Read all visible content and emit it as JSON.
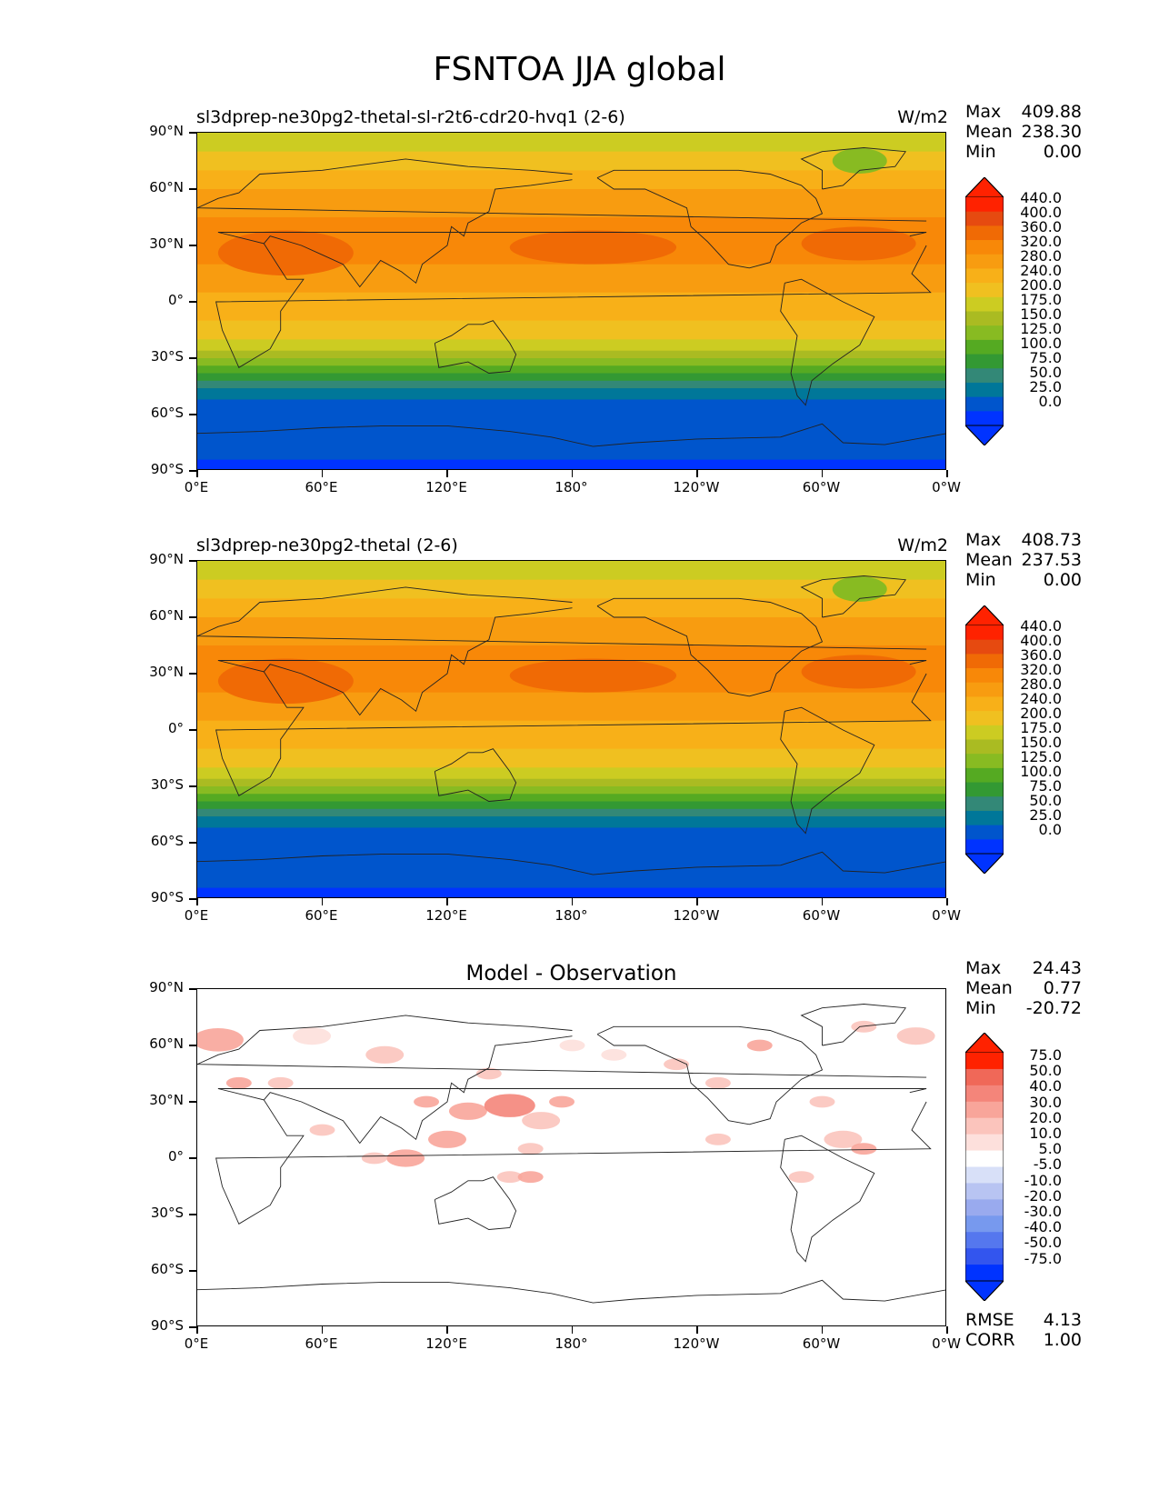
{
  "page_title": "FSNTOA JJA global",
  "panels": [
    {
      "title_left": "sl3dprep-ne30pg2-thetal-sl-r2t6-cdr20-hvq1 (2-6)",
      "title_right": "W/m2",
      "stats": {
        "max_label": "Max",
        "max": "409.88",
        "mean_label": "Mean",
        "mean": "238.30",
        "min_label": "Min",
        "min": "0.00"
      },
      "colorbar": [
        "440.0",
        "400.0",
        "360.0",
        "320.0",
        "280.0",
        "240.0",
        "200.0",
        "175.0",
        "150.0",
        "125.0",
        "100.0",
        "75.0",
        "50.0",
        "25.0",
        "0.0"
      ]
    },
    {
      "title_left": "sl3dprep-ne30pg2-thetal (2-6)",
      "title_right": "W/m2",
      "stats": {
        "max_label": "Max",
        "max": "408.73",
        "mean_label": "Mean",
        "mean": "237.53",
        "min_label": "Min",
        "min": "0.00"
      },
      "colorbar": [
        "440.0",
        "400.0",
        "360.0",
        "320.0",
        "280.0",
        "240.0",
        "200.0",
        "175.0",
        "150.0",
        "125.0",
        "100.0",
        "75.0",
        "50.0",
        "25.0",
        "0.0"
      ]
    },
    {
      "title_center": "Model - Observation",
      "stats": {
        "max_label": "Max",
        "max": "24.43",
        "mean_label": "Mean",
        "mean": "0.77",
        "min_label": "Min",
        "min": "-20.72"
      },
      "colorbar": [
        "75.0",
        "50.0",
        "40.0",
        "30.0",
        "20.0",
        "10.0",
        "5.0",
        "-5.0",
        "-10.0",
        "-20.0",
        "-30.0",
        "-40.0",
        "-50.0",
        "-75.0"
      ],
      "error": {
        "rmse_label": "RMSE",
        "rmse": "4.13",
        "corr_label": "CORR",
        "corr": "1.00"
      }
    }
  ],
  "axes": {
    "lat_labels": [
      "90°N",
      "60°N",
      "30°N",
      "0°",
      "30°S",
      "60°S",
      "90°S"
    ],
    "lon_labels": [
      "0°E",
      "60°E",
      "120°E",
      "180°",
      "120°W",
      "60°W",
      "0°W"
    ]
  },
  "colors": {
    "abs_scale": [
      "#0033ff",
      "#0055cc",
      "#007799",
      "#338877",
      "#339933",
      "#55aa22",
      "#88bb22",
      "#aabb22",
      "#cccc22",
      "#f0c020",
      "#f8b018",
      "#f89c10",
      "#f88808",
      "#f06a05",
      "#e64a10",
      "#ff2200"
    ],
    "diff_scale": [
      "#0033ff",
      "#3355ee",
      "#5577ee",
      "#7799ee",
      "#99aaee",
      "#b8c4f2",
      "#d8e0f8",
      "#ffffff",
      "#fde0dc",
      "#fbc4bc",
      "#f8a59a",
      "#f4857a",
      "#f06858",
      "#ff2200"
    ]
  }
}
